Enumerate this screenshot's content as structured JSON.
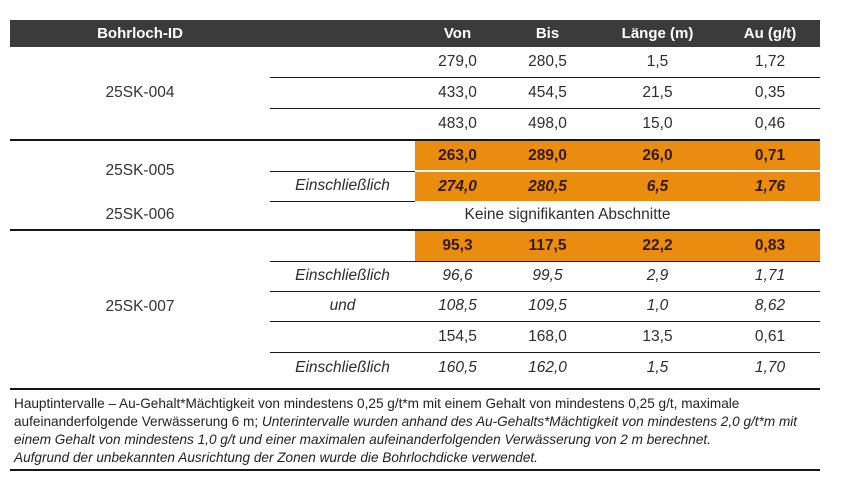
{
  "table": {
    "headers": {
      "id": "Bohrloch-ID",
      "von": "Von",
      "bis": "Bis",
      "laenge": "Länge (m)",
      "au": "Au (g/t)"
    },
    "groups": [
      {
        "id": "25SK-004",
        "rows": [
          {
            "label": "",
            "von": "279,0",
            "bis": "280,5",
            "len": "1,5",
            "au": "1,72"
          },
          {
            "label": "",
            "von": "433,0",
            "bis": "454,5",
            "len": "21,5",
            "au": "0,35"
          },
          {
            "label": "",
            "von": "483,0",
            "bis": "498,0",
            "len": "15,0",
            "au": "0,46"
          }
        ]
      },
      {
        "id": "25SK-005",
        "rows": [
          {
            "label": "",
            "von": "263,0",
            "bis": "289,0",
            "len": "26,0",
            "au": "0,71"
          },
          {
            "label": "Einschließlich",
            "von": "274,0",
            "bis": "280,5",
            "len": "6,5",
            "au": "1,76"
          }
        ]
      },
      {
        "id": "25SK-006",
        "note": "Keine signifikanten Abschnitte"
      },
      {
        "id": "25SK-007",
        "rows": [
          {
            "label": "",
            "von": "95,3",
            "bis": "117,5",
            "len": "22,2",
            "au": "0,83"
          },
          {
            "label": "Einschließlich",
            "von": "96,6",
            "bis": "99,5",
            "len": "2,9",
            "au": "1,71"
          },
          {
            "label": "und",
            "von": "108,5",
            "bis": "109,5",
            "len": "1,0",
            "au": "8,62"
          },
          {
            "label": "",
            "von": "154,5",
            "bis": "168,0",
            "len": "13,5",
            "au": "0,61"
          },
          {
            "label": "Einschließlich",
            "von": "160,5",
            "bis": "162,0",
            "len": "1,5",
            "au": "1,70"
          }
        ]
      }
    ]
  },
  "footnote": {
    "line1": "Hauptintervalle – Au-Gehalt*Mächtigkeit von mindestens 0,25 g/t*m mit einem Gehalt von mindestens 0,25 g/t, maximale",
    "line2_normal": "aufeinanderfolgende Verwässerung 6 m; ",
    "line2_italic": "Unterintervalle wurden anhand des Au-Gehalts*Mächtigkeit von mindestens 2,0 g/t*m mit",
    "line3": "einem Gehalt von mindestens 1,0 g/t und einer maximalen aufeinanderfolgenden Verwässerung von 2 m berechnet.",
    "line4": "Aufgrund der unbekannten Ausrichtung der Zonen wurde die Bohrlochdicke verwendet."
  },
  "colors": {
    "highlight_bg": "#EA8C10",
    "highlight_text": "#351A02",
    "header_bg": "#3B3B3B"
  }
}
